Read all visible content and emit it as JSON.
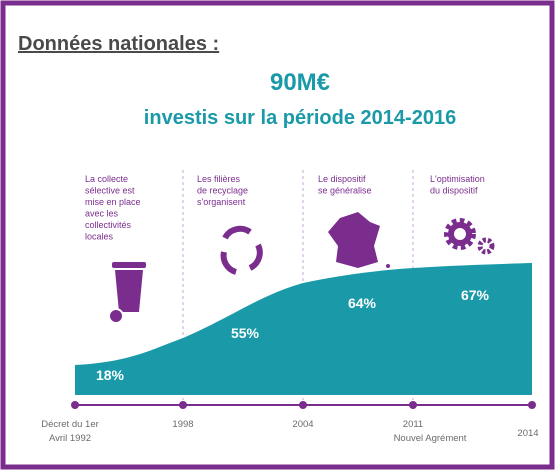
{
  "header": {
    "title": "Données nationales :"
  },
  "headline": {
    "amount": "90M€",
    "subtitle": "investis sur la période 2014-2016"
  },
  "steps": [
    {
      "lines": [
        "La collecte",
        "sélective est",
        "mise en place",
        "avec les",
        "collectivités",
        "locales"
      ],
      "share": "18%"
    },
    {
      "lines": [
        "Les filières",
        "de recyclage",
        "s'organisent"
      ],
      "share": "55%"
    },
    {
      "lines": [
        "Le dispositif",
        "se généralise"
      ],
      "share": "64%"
    },
    {
      "lines": [
        "L'optimisation",
        "du dispositif"
      ],
      "share": "67%"
    }
  ],
  "timeline": [
    {
      "lines": [
        "Décret du 1er",
        "Avril 1992"
      ]
    },
    {
      "lines": [
        "1998"
      ]
    },
    {
      "lines": [
        "2004"
      ]
    },
    {
      "lines": [
        "2011",
        "Nouvel Agrément"
      ]
    },
    {
      "lines": [
        "2014"
      ]
    }
  ]
}
